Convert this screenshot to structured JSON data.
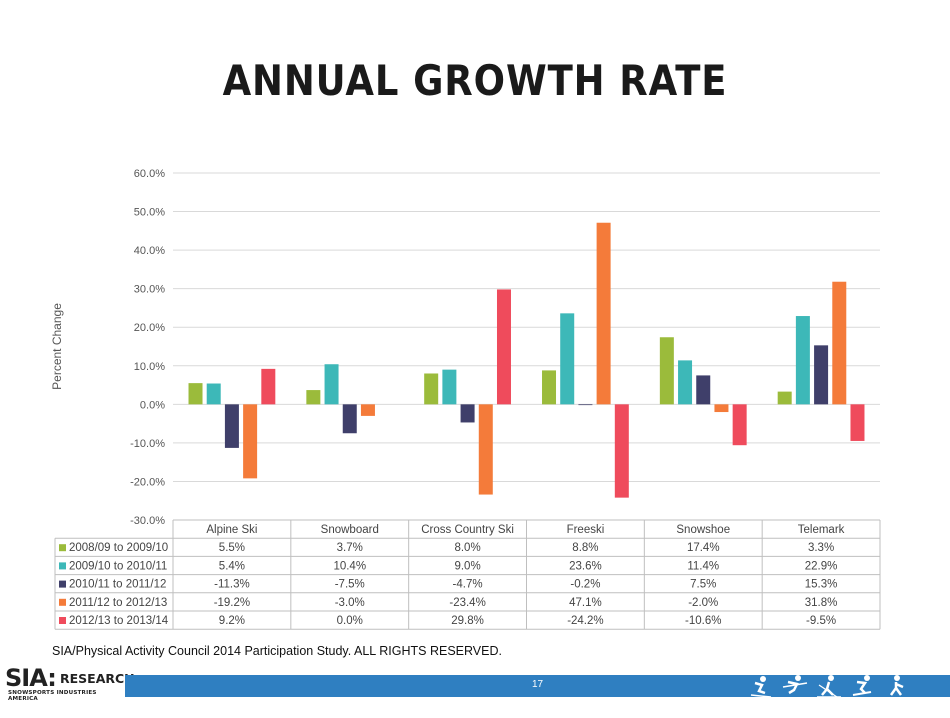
{
  "slide": {
    "title": "ANNUAL GROWTH RATE",
    "source": "SIA/Physical Activity Council 2014 Participation Study. ALL RIGHTS  RESERVED.",
    "page_number": "17",
    "logo": {
      "main": "SIA:",
      "sub": "RESEARCH",
      "tagline": "SNOWSPORTS INDUSTRIES AMERICA"
    },
    "accent_color": "#2f7fc1"
  },
  "chart_data": {
    "type": "bar",
    "title": "",
    "xlabel": "",
    "ylabel": "Percent Change",
    "ylim": [
      -30,
      60
    ],
    "yticks": [
      "60.0%",
      "50.0%",
      "40.0%",
      "30.0%",
      "20.0%",
      "10.0%",
      "0.0%",
      "-10.0%",
      "-20.0%",
      "-30.0%"
    ],
    "grid": true,
    "legend": "data-table",
    "categories": [
      "Alpine Ski",
      "Snowboard",
      "Cross Country Ski",
      "Freeski",
      "Snowshoe",
      "Telemark"
    ],
    "series": [
      {
        "name": "2008/09 to 2009/10",
        "color": "#9bbb3b",
        "values": [
          5.5,
          3.7,
          8.0,
          8.8,
          17.4,
          3.3
        ],
        "labels": [
          "5.5%",
          "3.7%",
          "8.0%",
          "8.8%",
          "17.4%",
          "3.3%"
        ]
      },
      {
        "name": "2009/10 to 2010/11",
        "color": "#3db8b8",
        "values": [
          5.4,
          10.4,
          9.0,
          23.6,
          11.4,
          22.9
        ],
        "labels": [
          "5.4%",
          "10.4%",
          "9.0%",
          "23.6%",
          "11.4%",
          "22.9%"
        ]
      },
      {
        "name": "2010/11 to 2011/12",
        "color": "#3f3f6a",
        "values": [
          -11.3,
          -7.5,
          -4.7,
          -0.2,
          7.5,
          15.3
        ],
        "labels": [
          "-11.3%",
          "-7.5%",
          "-4.7%",
          "-0.2%",
          "7.5%",
          "15.3%"
        ]
      },
      {
        "name": "2011/12 to 2012/13",
        "color": "#f47b3a",
        "values": [
          -19.2,
          -3.0,
          -23.4,
          47.1,
          -2.0,
          31.8
        ],
        "labels": [
          "-19.2%",
          "-3.0%",
          "-23.4%",
          "47.1%",
          "-2.0%",
          "31.8%"
        ]
      },
      {
        "name": "2012/13 to 2013/14",
        "color": "#ef4b5c",
        "values": [
          9.2,
          0.0,
          29.8,
          -24.2,
          -10.6,
          -9.5
        ],
        "labels": [
          "9.2%",
          "0.0%",
          "29.8%",
          "-24.2%",
          "-10.6%",
          "-9.5%"
        ]
      }
    ]
  },
  "footer_icons": [
    "skiing-icon",
    "freeski-icon",
    "cross-country-ski-icon",
    "snowboard-icon",
    "snowshoe-icon"
  ]
}
